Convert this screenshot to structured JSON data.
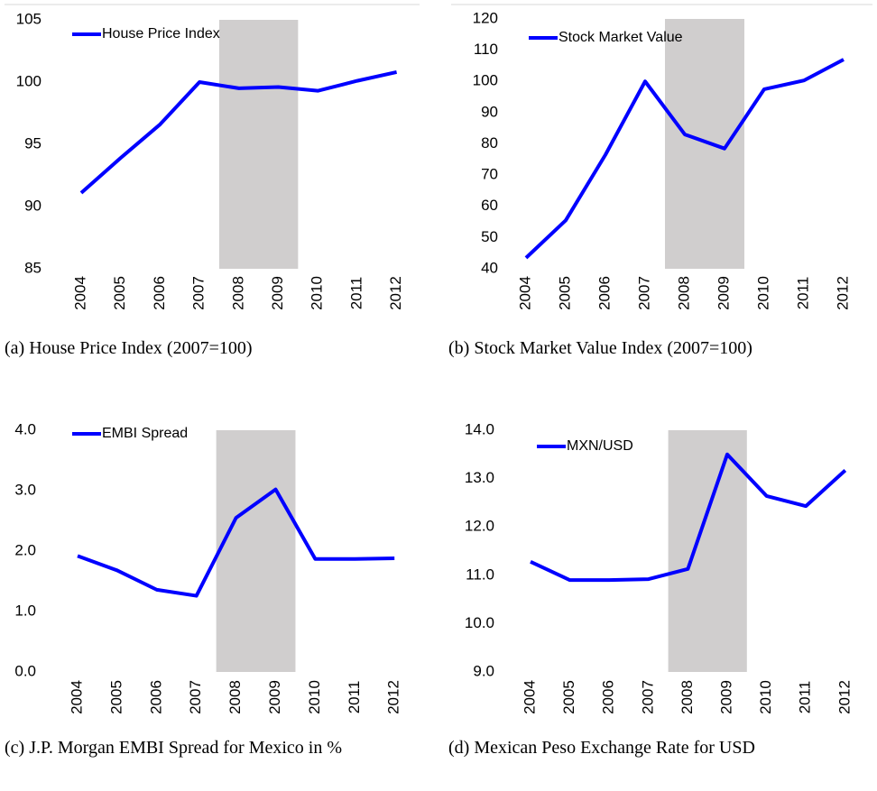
{
  "chart_data": [
    {
      "type": "line",
      "caption": "(a) House Price Index (2007=100)",
      "categories": [
        "2004",
        "2005",
        "2006",
        "2007",
        "2008",
        "2009",
        "2010",
        "2011",
        "2012"
      ],
      "series": [
        {
          "name": "House Price Index",
          "color": "#0000ff",
          "values": [
            91.1,
            93.9,
            96.6,
            100,
            99.5,
            99.6,
            99.3,
            100.1,
            100.8
          ]
        }
      ],
      "ylim": [
        85,
        105
      ],
      "yticks": [
        85,
        90,
        95,
        100,
        105
      ],
      "highlight": {
        "from": "2008",
        "to": "2009",
        "color": "#d0cece"
      },
      "legend": "top-left"
    },
    {
      "type": "line",
      "caption": "(b) Stock Market Value Index (2007=100)",
      "categories": [
        "2004",
        "2005",
        "2006",
        "2007",
        "2008",
        "2009",
        "2010",
        "2011",
        "2012"
      ],
      "series": [
        {
          "name": "Stock Market Value",
          "color": "#0000ff",
          "values": [
            43.5,
            55.5,
            76.5,
            100,
            83,
            78.5,
            97.5,
            100.3,
            107
          ]
        }
      ],
      "ylim": [
        40,
        120
      ],
      "yticks": [
        40,
        50,
        60,
        70,
        80,
        90,
        100,
        110,
        120
      ],
      "highlight": {
        "from": "2008",
        "to": "2009",
        "color": "#d0cece"
      },
      "legend": "top-left"
    },
    {
      "type": "line",
      "caption": "(c) J.P. Morgan EMBI Spread for Mexico in %",
      "categories": [
        "2004",
        "2005",
        "2006",
        "2007",
        "2008",
        "2009",
        "2010",
        "2011",
        "2012"
      ],
      "series": [
        {
          "name": "EMBI Spread",
          "color": "#0000ff",
          "values": [
            1.92,
            1.68,
            1.36,
            1.26,
            2.55,
            3.02,
            1.87,
            1.87,
            1.88
          ]
        }
      ],
      "ylim": [
        0,
        4
      ],
      "yticks": [
        {
          "value": 0,
          "label": "0.0"
        },
        {
          "value": 1,
          "label": "1.0"
        },
        {
          "value": 2,
          "label": "2.0"
        },
        {
          "value": 3,
          "label": "3.0"
        },
        {
          "value": 4,
          "label": "4.0"
        }
      ],
      "highlight": {
        "from": "2008",
        "to": "2009",
        "color": "#d0cece"
      },
      "legend": "top-left"
    },
    {
      "type": "line",
      "caption": "(d) Mexican Peso Exchange Rate for USD",
      "categories": [
        "2004",
        "2005",
        "2006",
        "2007",
        "2008",
        "2009",
        "2010",
        "2011",
        "2012"
      ],
      "series": [
        {
          "name": "MXN/USD",
          "color": "#0000ff",
          "values": [
            11.28,
            10.9,
            10.9,
            10.92,
            11.13,
            13.5,
            12.64,
            12.43,
            13.17
          ]
        }
      ],
      "ylim": [
        9,
        14
      ],
      "yticks": [
        {
          "value": 9,
          "label": "9.0"
        },
        {
          "value": 10,
          "label": "10.0"
        },
        {
          "value": 11,
          "label": "11.0"
        },
        {
          "value": 12,
          "label": "12.0"
        },
        {
          "value": 13,
          "label": "13.0"
        },
        {
          "value": 14,
          "label": "14.0"
        }
      ],
      "highlight": {
        "from": "2008",
        "to": "2009",
        "color": "#d0cece"
      },
      "legend": "top-left"
    }
  ]
}
